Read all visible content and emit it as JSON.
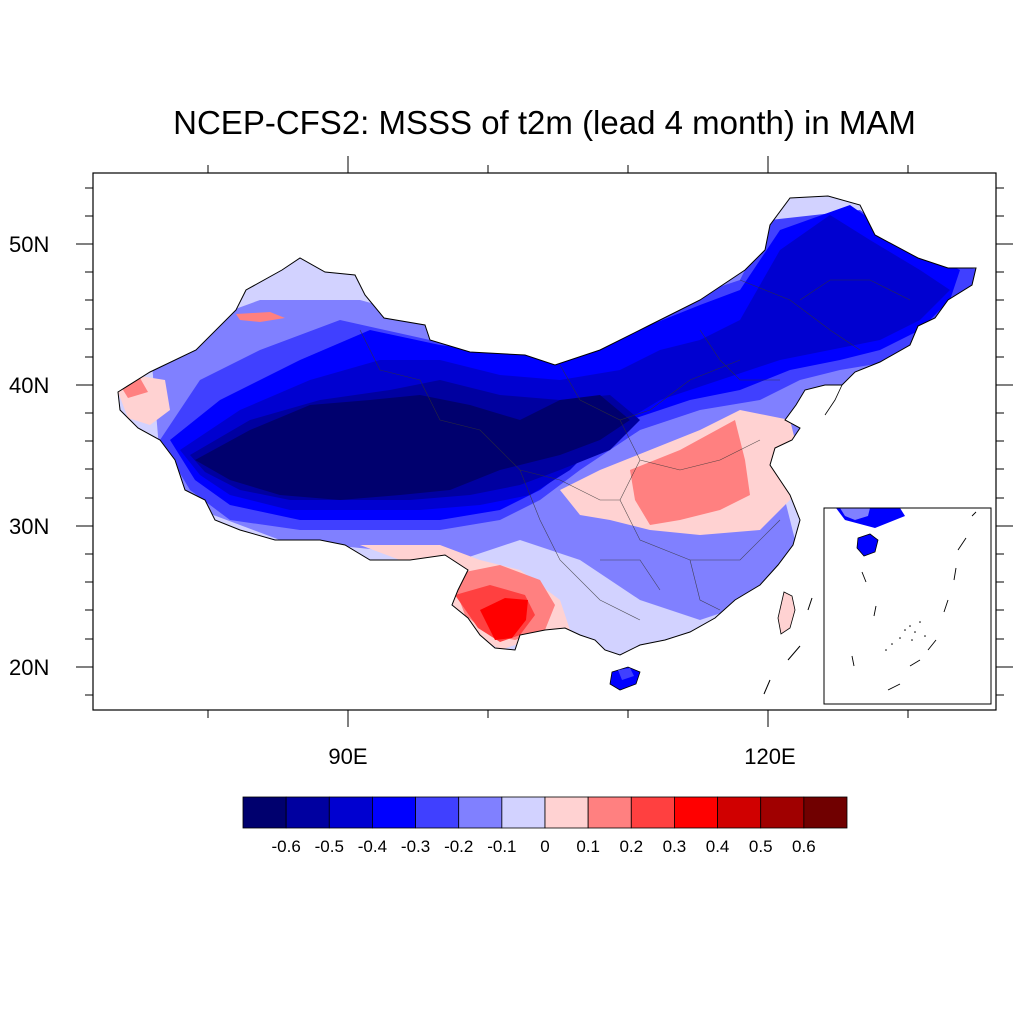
{
  "chart_data": {
    "type": "filled-contour-map",
    "title": "NCEP-CFS2: MSSS of t2m (lead 4 month) in MAM",
    "x_axis": {
      "ticks": [
        {
          "value": 90,
          "label": "90E"
        },
        {
          "value": 120,
          "label": "120E"
        }
      ],
      "range": [
        72,
        137
      ]
    },
    "y_axis": {
      "ticks": [
        {
          "value": 20,
          "label": "20N"
        },
        {
          "value": 30,
          "label": "30N"
        },
        {
          "value": 40,
          "label": "40N"
        },
        {
          "value": 50,
          "label": "50N"
        }
      ],
      "range": [
        17,
        55
      ]
    },
    "colorbar": {
      "levels": [
        "-0.6",
        "-0.5",
        "-0.4",
        "-0.3",
        "-0.2",
        "-0.1",
        "0",
        "0.1",
        "0.2",
        "0.3",
        "0.4",
        "0.5",
        "0.6"
      ],
      "colors": [
        "#00006e",
        "#0000a0",
        "#0000d0",
        "#0000ff",
        "#4040ff",
        "#8080ff",
        "#d2d2ff",
        "#ffd2d2",
        "#ff8080",
        "#ff4040",
        "#ff0000",
        "#d00000",
        "#a00000",
        "#700000"
      ]
    },
    "regions": [
      {
        "name": "tibet-plateau",
        "class": "-0.6 to -0.5"
      },
      {
        "name": "qaidam-basin",
        "class": "-0.6 to -0.5"
      },
      {
        "name": "northern-belt",
        "class": "-0.4 to -0.3"
      },
      {
        "name": "northeast",
        "class": "-0.4 to -0.3"
      },
      {
        "name": "central-east",
        "class": "0.1 to 0.2"
      },
      {
        "name": "yunnan-south",
        "class": "0.3 to 0.4"
      },
      {
        "name": "xinjiang-west-spot",
        "class": "0.1 to 0.2"
      }
    ],
    "inset": "south-china-sea"
  }
}
